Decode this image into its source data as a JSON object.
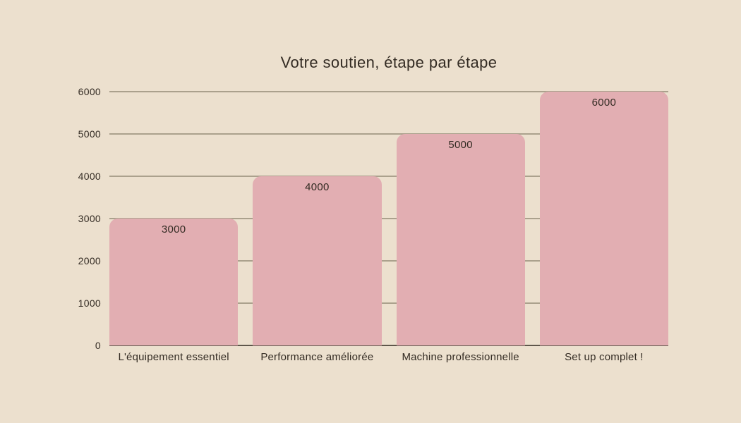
{
  "chart_data": {
    "type": "bar",
    "title": "Votre soutien, étape par étape",
    "categories": [
      "L'équipement essentiel",
      "Performance améliorée",
      "Machine professionnelle",
      "Set up complet !"
    ],
    "values": [
      3000,
      4000,
      5000,
      6000
    ],
    "value_labels": [
      "3000",
      "4000",
      "5000",
      "6000"
    ],
    "y_ticks": [
      0,
      1000,
      2000,
      3000,
      4000,
      5000,
      6000
    ],
    "y_tick_labels": [
      "0",
      "1000",
      "2000",
      "3000",
      "4000",
      "5000",
      "6000"
    ],
    "ylim": [
      0,
      6000
    ],
    "xlabel": "",
    "ylabel": "",
    "grid": "horizontal",
    "legend": "none",
    "colors": {
      "background": "#ece0ce",
      "bar_fill": "#e2aeb2",
      "gridline": "#aba18d",
      "axis_line": "#5f574b",
      "text": "#332b23"
    }
  }
}
